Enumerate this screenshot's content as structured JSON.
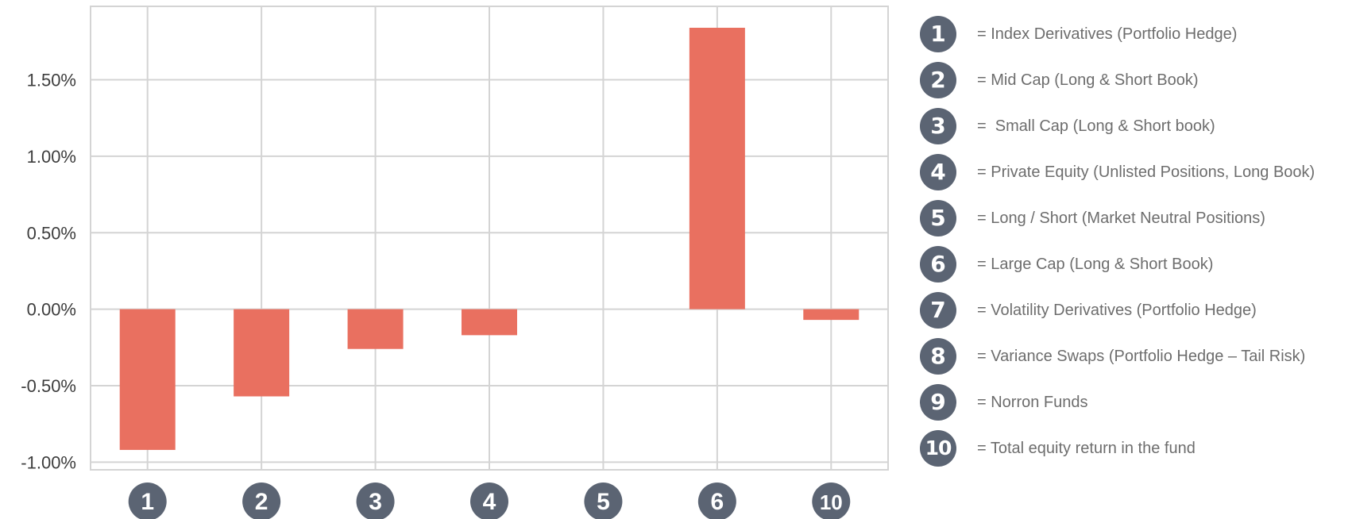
{
  "chart_data": {
    "type": "bar",
    "categories": [
      "1",
      "2",
      "3",
      "4",
      "5",
      "6",
      "10"
    ],
    "values": [
      -0.92,
      -0.57,
      -0.26,
      -0.17,
      0.0,
      1.84,
      -0.07
    ],
    "ylim": [
      -1.05,
      1.98
    ],
    "y_ticks": [
      "-1.00%",
      "-0.50%",
      "0.00%",
      "0.50%",
      "1.00%",
      "1.50%"
    ],
    "y_tick_values": [
      -1.0,
      -0.5,
      0.0,
      0.5,
      1.0,
      1.5
    ],
    "unit": "%",
    "grid": true,
    "bar_color": "#e97060",
    "badge_color": "#5b6473"
  },
  "legend": {
    "items": [
      {
        "badge": "1",
        "label": "= Index Derivatives (Portfolio Hedge)"
      },
      {
        "badge": "2",
        "label": "= Mid Cap (Long & Short Book)"
      },
      {
        "badge": "3",
        "label": "=  Small Cap (Long & Short book)"
      },
      {
        "badge": "4",
        "label": "= Private Equity (Unlisted Positions, Long Book)"
      },
      {
        "badge": "5",
        "label": "= Long / Short (Market Neutral Positions)"
      },
      {
        "badge": "6",
        "label": "= Large Cap (Long & Short Book)"
      },
      {
        "badge": "7",
        "label": "= Volatility Derivatives (Portfolio Hedge)"
      },
      {
        "badge": "8",
        "label": "= Variance Swaps (Portfolio Hedge – Tail Risk)"
      },
      {
        "badge": "9",
        "label": "= Norron Funds"
      },
      {
        "badge": "10",
        "label": "= Total equity return in the fund"
      }
    ]
  }
}
